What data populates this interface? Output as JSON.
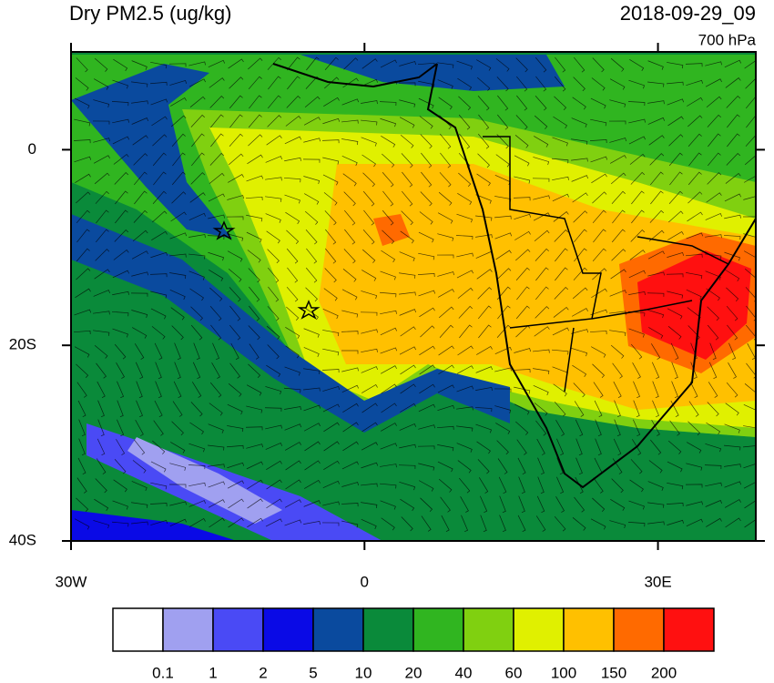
{
  "header": {
    "title": "Dry PM2.5 (ug/kg)",
    "time": "2018-09-29_09",
    "level": "700 hPa"
  },
  "map": {
    "lonlim": [
      -30,
      40
    ],
    "latlim": [
      -40,
      10
    ],
    "lonticks": [
      {
        "value": -30,
        "label": "30W"
      },
      {
        "value": 0,
        "label": "0"
      },
      {
        "value": 30,
        "label": "30E"
      }
    ],
    "latticks": [
      {
        "value": 0,
        "label": "0"
      },
      {
        "value": -20,
        "label": "20S"
      },
      {
        "value": -40,
        "label": "40S"
      }
    ]
  },
  "colorbar": {
    "colors": [
      "#ffffff",
      "#a0a0f0",
      "#4a4af5",
      "#0a0ae6",
      "#0a4a9e",
      "#0a8a3a",
      "#30b520",
      "#80d010",
      "#e0f000",
      "#ffc000",
      "#ff6a00",
      "#ff1010"
    ],
    "labels": [
      "0.1",
      "1",
      "2",
      "5",
      "10",
      "20",
      "40",
      "60",
      "100",
      "150",
      "200"
    ]
  }
}
